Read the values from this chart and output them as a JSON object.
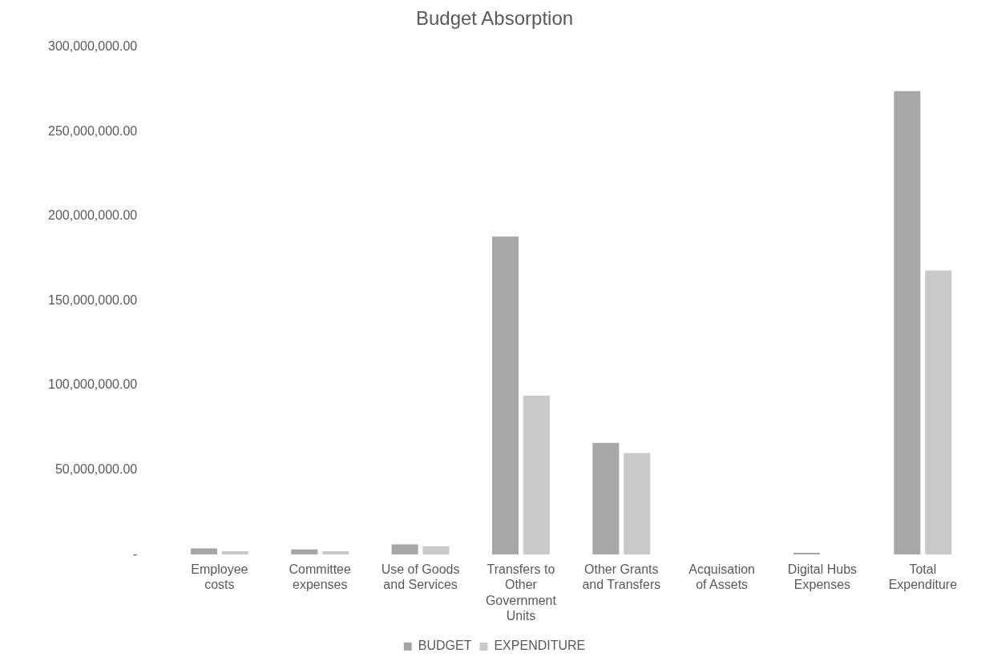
{
  "chart_data": {
    "type": "bar",
    "title": "Budget Absorption",
    "categories": [
      "Employee costs",
      "Committee expenses",
      "Use of Goods and Services",
      "Transfers to Other Government Units",
      "Other Grants and Transfers",
      "Acquisation of Assets",
      "Digital Hubs Expenses",
      "Total Expenditure"
    ],
    "series": [
      {
        "name": "BUDGET",
        "color": "#a6a6a6",
        "values": [
          3600000,
          3000000,
          6000000,
          188000000,
          66000000,
          0,
          1000000,
          274000000
        ]
      },
      {
        "name": "EXPENDITURE",
        "color": "#c9c9c9",
        "values": [
          2000000,
          2000000,
          5000000,
          94000000,
          60000000,
          0,
          0,
          168000000
        ]
      }
    ],
    "ylim": [
      0,
      300000000
    ],
    "yticks": [
      {
        "value": 0,
        "label": "-"
      },
      {
        "value": 50000000,
        "label": "50,000,000.00"
      },
      {
        "value": 100000000,
        "label": "100,000,000.00"
      },
      {
        "value": 150000000,
        "label": "150,000,000.00"
      },
      {
        "value": 200000000,
        "label": "200,000,000.00"
      },
      {
        "value": 250000000,
        "label": "250,000,000.00"
      },
      {
        "value": 300000000,
        "label": "300,000,000.00"
      }
    ],
    "grid": false,
    "legend": "bottom"
  }
}
